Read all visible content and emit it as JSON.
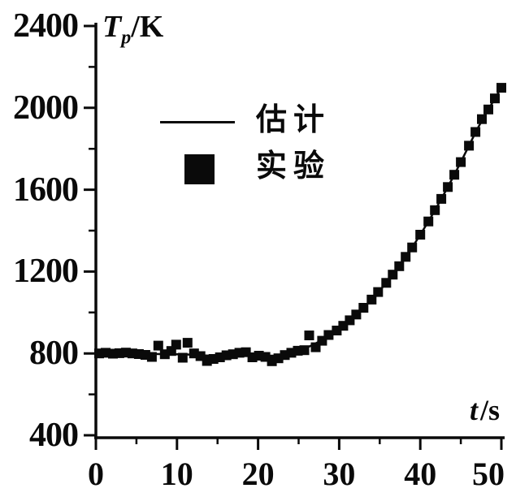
{
  "window": {
    "background": "#ffffff",
    "ink": "#0a0a0a"
  },
  "ui": {
    "y_axis_title": {
      "t": "T",
      "sub": "p",
      "unit": "/K"
    },
    "x_axis_title": {
      "t": "t",
      "unit": "/s"
    },
    "legend": {
      "estimate": "估计",
      "experiment": "实验"
    }
  },
  "chart_data": {
    "type": "line+scatter",
    "title": "",
    "xlabel": "t/s",
    "ylabel": "Tp/K",
    "xlim": [
      0,
      50
    ],
    "ylim": [
      400,
      2400
    ],
    "x_ticks": [
      0,
      10,
      20,
      30,
      40,
      50
    ],
    "x_minor_ticks": [
      5,
      15,
      25,
      35,
      45
    ],
    "y_ticks": [
      2400,
      2000,
      1600,
      1200,
      800,
      400
    ],
    "y_minor_ticks": [
      600,
      1000,
      1400,
      1800,
      2200
    ],
    "grid": false,
    "legend_position": "upper-left-inside",
    "series": [
      {
        "name": "估计",
        "type": "line",
        "points": [
          [
            0,
            800
          ],
          [
            2,
            800
          ],
          [
            4,
            799
          ],
          [
            6,
            798
          ],
          [
            8,
            797
          ],
          [
            10,
            796
          ],
          [
            12,
            794
          ],
          [
            14,
            789
          ],
          [
            16,
            789
          ],
          [
            18,
            793
          ],
          [
            20,
            789
          ],
          [
            22,
            789
          ],
          [
            23,
            794
          ],
          [
            24,
            802
          ],
          [
            25,
            813
          ],
          [
            26,
            828
          ],
          [
            27,
            847
          ],
          [
            28,
            868
          ],
          [
            29,
            893
          ],
          [
            30,
            921
          ],
          [
            31,
            952
          ],
          [
            32,
            986
          ],
          [
            33,
            1023
          ],
          [
            34,
            1063
          ],
          [
            35,
            1107
          ],
          [
            36,
            1154
          ],
          [
            37,
            1205
          ],
          [
            38,
            1260
          ],
          [
            39,
            1318
          ],
          [
            40,
            1380
          ],
          [
            41,
            1445
          ],
          [
            42,
            1513
          ],
          [
            43,
            1584
          ],
          [
            44,
            1658
          ],
          [
            45,
            1735
          ],
          [
            46,
            1815
          ],
          [
            47,
            1895
          ],
          [
            48,
            1965
          ],
          [
            49,
            2032
          ],
          [
            50,
            2100
          ]
        ]
      },
      {
        "name": "实验",
        "type": "scatter",
        "points": [
          [
            0.4,
            800
          ],
          [
            1.2,
            803
          ],
          [
            2.1,
            799
          ],
          [
            2.9,
            801
          ],
          [
            3.7,
            804
          ],
          [
            4.5,
            800
          ],
          [
            5.3,
            797
          ],
          [
            6.1,
            793
          ],
          [
            6.9,
            783
          ],
          [
            7.7,
            838
          ],
          [
            8.5,
            796
          ],
          [
            9.3,
            812
          ],
          [
            9.9,
            843
          ],
          [
            10.7,
            779
          ],
          [
            11.3,
            852
          ],
          [
            12.1,
            800
          ],
          [
            12.9,
            787
          ],
          [
            13.7,
            763
          ],
          [
            14.5,
            773
          ],
          [
            15.3,
            781
          ],
          [
            16.1,
            791
          ],
          [
            16.9,
            796
          ],
          [
            17.7,
            803
          ],
          [
            18.5,
            806
          ],
          [
            19.3,
            781
          ],
          [
            20.1,
            789
          ],
          [
            20.9,
            783
          ],
          [
            21.7,
            762
          ],
          [
            22.5,
            776
          ],
          [
            23.3,
            792
          ],
          [
            24.1,
            803
          ],
          [
            24.9,
            813
          ],
          [
            25.7,
            816
          ],
          [
            26.3,
            888
          ],
          [
            27.1,
            830
          ],
          [
            27.9,
            862
          ],
          [
            28.7,
            890
          ],
          [
            29.7,
            912
          ],
          [
            30.5,
            935
          ],
          [
            31.3,
            962
          ],
          [
            32.1,
            990
          ],
          [
            33,
            1023
          ],
          [
            34,
            1063
          ],
          [
            34.8,
            1100
          ],
          [
            35.8,
            1145
          ],
          [
            36.6,
            1185
          ],
          [
            37.4,
            1226
          ],
          [
            38.2,
            1272
          ],
          [
            39,
            1318
          ],
          [
            40,
            1380
          ],
          [
            41,
            1445
          ],
          [
            41.8,
            1500
          ],
          [
            42.6,
            1555
          ],
          [
            43.4,
            1613
          ],
          [
            44.2,
            1673
          ],
          [
            45,
            1735
          ],
          [
            46,
            1815
          ],
          [
            46.8,
            1882
          ],
          [
            47.6,
            1945
          ],
          [
            48.4,
            1992
          ],
          [
            49.2,
            2046
          ],
          [
            50,
            2098
          ]
        ]
      }
    ]
  }
}
